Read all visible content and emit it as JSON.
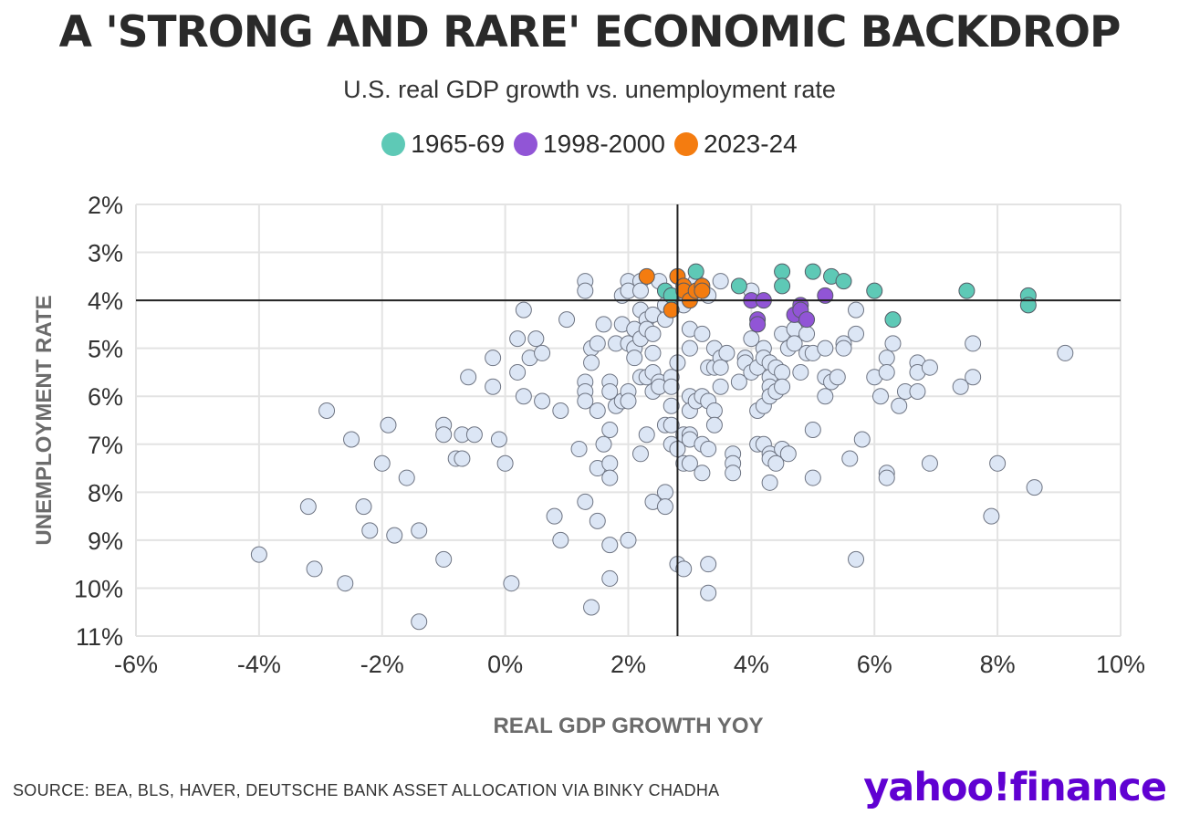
{
  "title": "A 'STRONG AND RARE' ECONOMIC BACKDROP",
  "subtitle": "U.S. real GDP growth vs. unemployment rate",
  "legend": [
    {
      "label": "1965-69",
      "color": "#5ec9b6"
    },
    {
      "label": "1998-2000",
      "color": "#9155d6"
    },
    {
      "label": "2023-24",
      "color": "#f47c10"
    }
  ],
  "source": "SOURCE: BEA, BLS, HAVER, DEUTSCHE BANK ASSET ALLOCATION VIA BINKY CHADHA",
  "brand": {
    "part1": "yahoo",
    "part2": "!",
    "part3": "finance"
  },
  "chart_data": {
    "type": "scatter",
    "title": "A 'STRONG AND RARE' ECONOMIC BACKDROP",
    "subtitle": "U.S. real GDP growth vs. unemployment rate",
    "xlabel": "REAL GDP GROWTH YOY",
    "ylabel": "UNEMPLOYMENT RATE",
    "xlim": [
      -6,
      10
    ],
    "ylim": [
      2,
      11
    ],
    "y_inverted": true,
    "x_ticks": [
      -6,
      -4,
      -2,
      0,
      2,
      4,
      6,
      8,
      10
    ],
    "x_tick_labels": [
      "-6%",
      "-4%",
      "-2%",
      "0%",
      "2%",
      "4%",
      "6%",
      "8%",
      "10%"
    ],
    "y_ticks": [
      2,
      3,
      4,
      5,
      6,
      7,
      8,
      9,
      10,
      11
    ],
    "y_tick_labels": [
      "2%",
      "3%",
      "4%",
      "5%",
      "6%",
      "7%",
      "8%",
      "9%",
      "10%",
      "11%"
    ],
    "grid": true,
    "legend_position": "top-center",
    "reference_lines": {
      "x": 2.8,
      "y": 4.0
    },
    "series": [
      {
        "color": "#dce6f5",
        "points": [
          [
            -4.0,
            9.3
          ],
          [
            -3.2,
            8.3
          ],
          [
            -3.1,
            9.6
          ],
          [
            -2.9,
            6.3
          ],
          [
            -2.6,
            9.9
          ],
          [
            -2.5,
            6.9
          ],
          [
            -2.3,
            8.3
          ],
          [
            -2.2,
            8.8
          ],
          [
            -2.0,
            7.4
          ],
          [
            -1.9,
            6.6
          ],
          [
            -1.8,
            8.9
          ],
          [
            -1.6,
            7.7
          ],
          [
            -1.4,
            8.8
          ],
          [
            -1.4,
            10.7
          ],
          [
            -1.0,
            6.6
          ],
          [
            -1.0,
            6.8
          ],
          [
            -1.0,
            9.4
          ],
          [
            -0.8,
            7.3
          ],
          [
            -0.7,
            6.8
          ],
          [
            -0.7,
            7.3
          ],
          [
            -0.6,
            5.6
          ],
          [
            -0.5,
            6.8
          ],
          [
            -0.2,
            5.2
          ],
          [
            -0.2,
            5.8
          ],
          [
            -0.1,
            6.9
          ],
          [
            0.0,
            7.4
          ],
          [
            0.1,
            9.9
          ],
          [
            0.2,
            4.8
          ],
          [
            0.2,
            5.5
          ],
          [
            0.3,
            4.2
          ],
          [
            0.3,
            6.0
          ],
          [
            0.4,
            5.2
          ],
          [
            0.5,
            4.8
          ],
          [
            0.6,
            5.1
          ],
          [
            0.6,
            6.1
          ],
          [
            0.8,
            8.5
          ],
          [
            0.9,
            6.3
          ],
          [
            0.9,
            9.0
          ],
          [
            1.0,
            4.4
          ],
          [
            1.2,
            7.1
          ],
          [
            1.3,
            3.6
          ],
          [
            1.3,
            3.8
          ],
          [
            1.3,
            5.7
          ],
          [
            1.3,
            5.9
          ],
          [
            1.3,
            6.1
          ],
          [
            1.3,
            8.2
          ],
          [
            1.4,
            5.0
          ],
          [
            1.4,
            5.3
          ],
          [
            1.4,
            10.4
          ],
          [
            1.5,
            4.9
          ],
          [
            1.5,
            6.3
          ],
          [
            1.5,
            7.5
          ],
          [
            1.5,
            8.6
          ],
          [
            1.6,
            4.5
          ],
          [
            1.6,
            7.0
          ],
          [
            1.7,
            5.7
          ],
          [
            1.7,
            5.9
          ],
          [
            1.7,
            6.7
          ],
          [
            1.7,
            7.4
          ],
          [
            1.7,
            7.7
          ],
          [
            1.7,
            9.1
          ],
          [
            1.7,
            9.8
          ],
          [
            1.8,
            4.9
          ],
          [
            1.8,
            6.2
          ],
          [
            1.9,
            3.9
          ],
          [
            1.9,
            4.5
          ],
          [
            1.9,
            6.1
          ],
          [
            2.0,
            3.6
          ],
          [
            2.0,
            3.8
          ],
          [
            2.0,
            4.9
          ],
          [
            2.0,
            5.9
          ],
          [
            2.0,
            6.1
          ],
          [
            2.0,
            9.0
          ],
          [
            2.1,
            4.6
          ],
          [
            2.1,
            5.0
          ],
          [
            2.1,
            5.2
          ],
          [
            2.2,
            3.6
          ],
          [
            2.2,
            3.8
          ],
          [
            2.2,
            4.2
          ],
          [
            2.2,
            4.8
          ],
          [
            2.2,
            5.6
          ],
          [
            2.2,
            7.2
          ],
          [
            2.3,
            4.4
          ],
          [
            2.3,
            4.6
          ],
          [
            2.3,
            5.6
          ],
          [
            2.3,
            6.8
          ],
          [
            2.4,
            4.3
          ],
          [
            2.4,
            4.7
          ],
          [
            2.4,
            5.1
          ],
          [
            2.4,
            5.5
          ],
          [
            2.4,
            5.9
          ],
          [
            2.4,
            8.2
          ],
          [
            2.5,
            3.6
          ],
          [
            2.5,
            5.7
          ],
          [
            2.5,
            5.8
          ],
          [
            2.6,
            4.1
          ],
          [
            2.6,
            4.4
          ],
          [
            2.6,
            6.6
          ],
          [
            2.6,
            8.0
          ],
          [
            2.6,
            8.3
          ],
          [
            2.7,
            5.6
          ],
          [
            2.7,
            5.8
          ],
          [
            2.7,
            6.2
          ],
          [
            2.7,
            6.6
          ],
          [
            2.7,
            7.0
          ],
          [
            2.8,
            5.3
          ],
          [
            2.8,
            7.1
          ],
          [
            2.8,
            9.5
          ],
          [
            2.9,
            3.8
          ],
          [
            2.9,
            4.1
          ],
          [
            2.9,
            6.8
          ],
          [
            2.9,
            7.4
          ],
          [
            2.9,
            9.6
          ],
          [
            3.0,
            4.6
          ],
          [
            3.0,
            5.0
          ],
          [
            3.0,
            6.0
          ],
          [
            3.0,
            6.3
          ],
          [
            3.0,
            6.8
          ],
          [
            3.0,
            6.9
          ],
          [
            3.0,
            7.4
          ],
          [
            3.1,
            3.6
          ],
          [
            3.1,
            6.1
          ],
          [
            3.2,
            4.7
          ],
          [
            3.2,
            6.0
          ],
          [
            3.2,
            7.0
          ],
          [
            3.2,
            7.6
          ],
          [
            3.3,
            3.9
          ],
          [
            3.3,
            5.4
          ],
          [
            3.3,
            6.1
          ],
          [
            3.3,
            7.1
          ],
          [
            3.3,
            9.5
          ],
          [
            3.3,
            10.1
          ],
          [
            3.4,
            5.0
          ],
          [
            3.4,
            5.4
          ],
          [
            3.4,
            6.3
          ],
          [
            3.4,
            6.6
          ],
          [
            3.5,
            3.6
          ],
          [
            3.5,
            5.2
          ],
          [
            3.5,
            5.4
          ],
          [
            3.5,
            5.8
          ],
          [
            3.6,
            5.1
          ],
          [
            3.7,
            7.2
          ],
          [
            3.7,
            7.4
          ],
          [
            3.7,
            7.6
          ],
          [
            3.8,
            5.7
          ],
          [
            3.9,
            5.2
          ],
          [
            3.9,
            5.3
          ],
          [
            4.0,
            3.8
          ],
          [
            4.0,
            4.8
          ],
          [
            4.0,
            5.5
          ],
          [
            4.1,
            5.4
          ],
          [
            4.1,
            6.3
          ],
          [
            4.1,
            7.0
          ],
          [
            4.2,
            5.0
          ],
          [
            4.2,
            5.2
          ],
          [
            4.2,
            6.2
          ],
          [
            4.2,
            7.0
          ],
          [
            4.3,
            5.3
          ],
          [
            4.3,
            5.6
          ],
          [
            4.3,
            5.8
          ],
          [
            4.3,
            6.0
          ],
          [
            4.3,
            7.2
          ],
          [
            4.3,
            7.3
          ],
          [
            4.3,
            7.8
          ],
          [
            4.4,
            5.4
          ],
          [
            4.4,
            5.9
          ],
          [
            4.4,
            7.4
          ],
          [
            4.5,
            4.7
          ],
          [
            4.5,
            5.5
          ],
          [
            4.5,
            5.8
          ],
          [
            4.5,
            7.1
          ],
          [
            4.6,
            5.0
          ],
          [
            4.6,
            7.2
          ],
          [
            4.7,
            4.6
          ],
          [
            4.7,
            4.9
          ],
          [
            4.8,
            5.5
          ],
          [
            4.9,
            4.7
          ],
          [
            4.9,
            5.1
          ],
          [
            5.0,
            5.1
          ],
          [
            5.0,
            6.7
          ],
          [
            5.0,
            7.7
          ],
          [
            5.2,
            5.0
          ],
          [
            5.2,
            5.6
          ],
          [
            5.2,
            6.0
          ],
          [
            5.3,
            5.7
          ],
          [
            5.4,
            5.6
          ],
          [
            5.5,
            4.9
          ],
          [
            5.5,
            5.0
          ],
          [
            5.6,
            7.3
          ],
          [
            5.7,
            4.2
          ],
          [
            5.7,
            4.7
          ],
          [
            5.7,
            9.4
          ],
          [
            5.8,
            6.9
          ],
          [
            6.0,
            5.6
          ],
          [
            6.1,
            6.0
          ],
          [
            6.2,
            5.2
          ],
          [
            6.2,
            5.5
          ],
          [
            6.2,
            7.6
          ],
          [
            6.2,
            7.7
          ],
          [
            6.3,
            4.9
          ],
          [
            6.4,
            6.2
          ],
          [
            6.5,
            5.9
          ],
          [
            6.7,
            5.3
          ],
          [
            6.7,
            5.5
          ],
          [
            6.7,
            5.9
          ],
          [
            6.9,
            5.4
          ],
          [
            6.9,
            7.4
          ],
          [
            7.4,
            5.8
          ],
          [
            7.6,
            4.9
          ],
          [
            7.6,
            5.6
          ],
          [
            7.9,
            8.5
          ],
          [
            8.0,
            7.4
          ],
          [
            8.6,
            7.9
          ],
          [
            9.1,
            5.1
          ]
        ]
      },
      {
        "name": "1965-69",
        "color": "#5ec9b6",
        "points": [
          [
            2.6,
            3.8
          ],
          [
            2.7,
            3.9
          ],
          [
            3.1,
            3.4
          ],
          [
            3.8,
            3.7
          ],
          [
            4.5,
            3.4
          ],
          [
            4.5,
            3.7
          ],
          [
            5.0,
            3.4
          ],
          [
            5.3,
            3.5
          ],
          [
            5.5,
            3.6
          ],
          [
            6.0,
            3.8
          ],
          [
            6.3,
            4.4
          ],
          [
            7.5,
            3.8
          ],
          [
            8.5,
            3.9
          ],
          [
            8.5,
            4.1
          ]
        ]
      },
      {
        "name": "1998-2000",
        "color": "#9155d6",
        "points": [
          [
            4.0,
            4.0
          ],
          [
            4.1,
            4.4
          ],
          [
            4.1,
            4.5
          ],
          [
            4.2,
            4.0
          ],
          [
            4.7,
            4.3
          ],
          [
            4.8,
            4.1
          ],
          [
            4.8,
            4.2
          ],
          [
            4.9,
            4.4
          ],
          [
            5.2,
            3.9
          ]
        ]
      },
      {
        "name": "2023-24",
        "color": "#f47c10",
        "points": [
          [
            2.3,
            3.5
          ],
          [
            2.7,
            4.2
          ],
          [
            2.8,
            3.5
          ],
          [
            2.9,
            3.7
          ],
          [
            2.9,
            3.8
          ],
          [
            3.0,
            4.0
          ],
          [
            3.1,
            3.8
          ],
          [
            3.2,
            3.7
          ],
          [
            3.2,
            3.8
          ]
        ]
      }
    ]
  }
}
